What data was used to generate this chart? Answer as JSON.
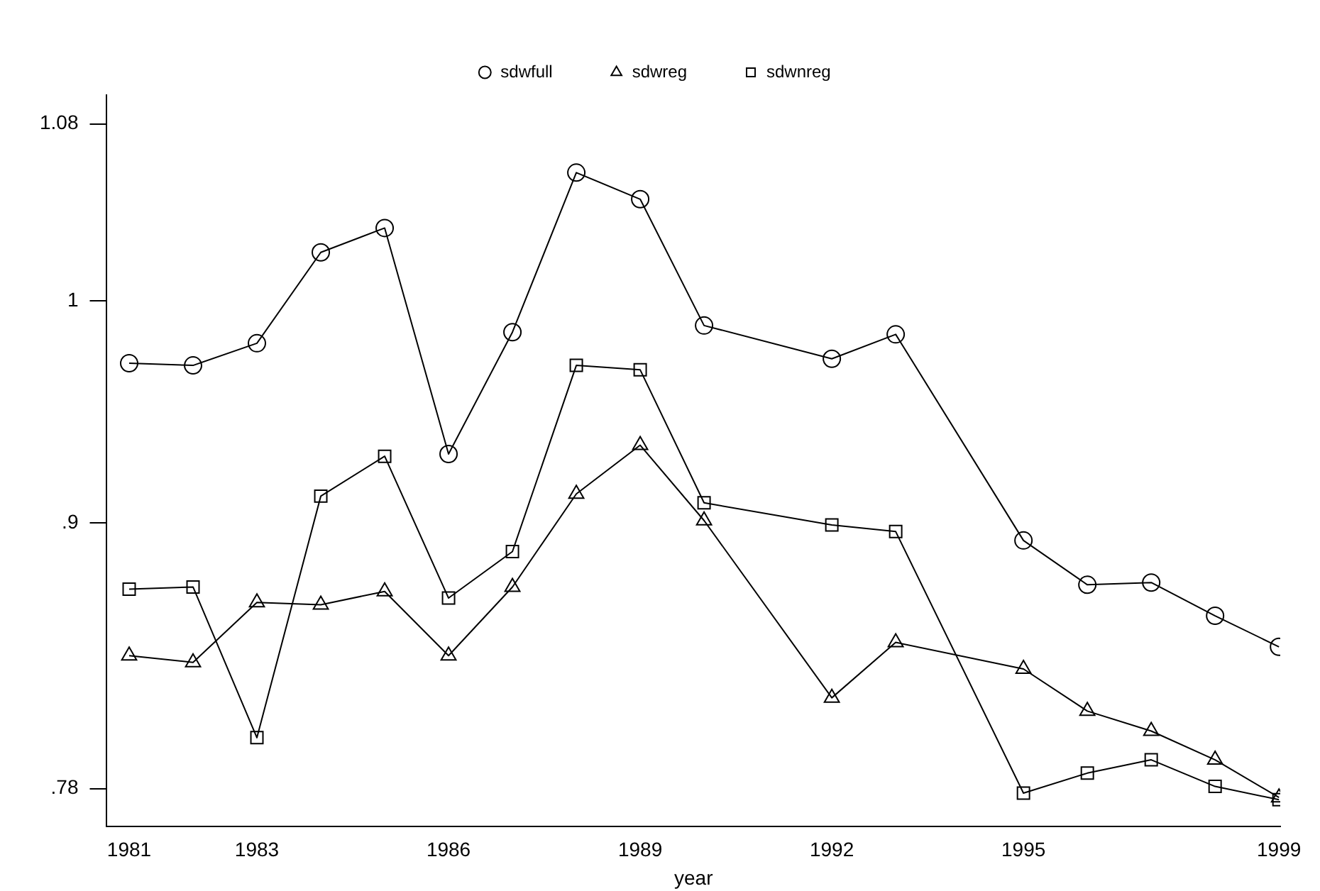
{
  "chart_data": {
    "type": "line",
    "xlabel": "year",
    "x": [
      1981,
      1982,
      1983,
      1984,
      1985,
      1986,
      1987,
      1988,
      1989,
      1990,
      1992,
      1993,
      1995,
      1996,
      1997,
      1998,
      1999
    ],
    "series": [
      {
        "name": "sdwfull",
        "color": "#000000",
        "marker": "circle",
        "values": [
          0.972,
          0.971,
          0.981,
          1.022,
          1.033,
          0.931,
          0.986,
          1.058,
          1.046,
          0.989,
          0.974,
          0.985,
          0.892,
          0.872,
          0.873,
          0.858,
          0.844
        ]
      },
      {
        "name": "sdwreg",
        "color": "#000000",
        "marker": "triangle",
        "values": [
          0.84,
          0.837,
          0.864,
          0.863,
          0.869,
          0.84,
          0.871,
          0.913,
          0.935,
          0.901,
          0.821,
          0.846,
          0.834,
          0.815,
          0.806,
          0.793,
          0.776
        ]
      },
      {
        "name": "sdwnreg",
        "color": "#000000",
        "marker": "square",
        "values": [
          0.87,
          0.871,
          0.803,
          0.912,
          0.93,
          0.866,
          0.887,
          0.971,
          0.969,
          0.909,
          0.899,
          0.896,
          0.778,
          0.787,
          0.793,
          0.781,
          0.775
        ]
      }
    ],
    "xlim": [
      1980.65,
      1999.02
    ],
    "xticks": [
      1981,
      1983,
      1986,
      1989,
      1992,
      1995,
      1999
    ],
    "ylim": [
      0.763,
      1.093
    ],
    "yticks": [
      {
        "value": 0.78,
        "label": ".78"
      },
      {
        "value": 0.9,
        "label": ".9"
      },
      1,
      1.08
    ],
    "grid": false,
    "legend": "top",
    "line_style": "solid"
  }
}
